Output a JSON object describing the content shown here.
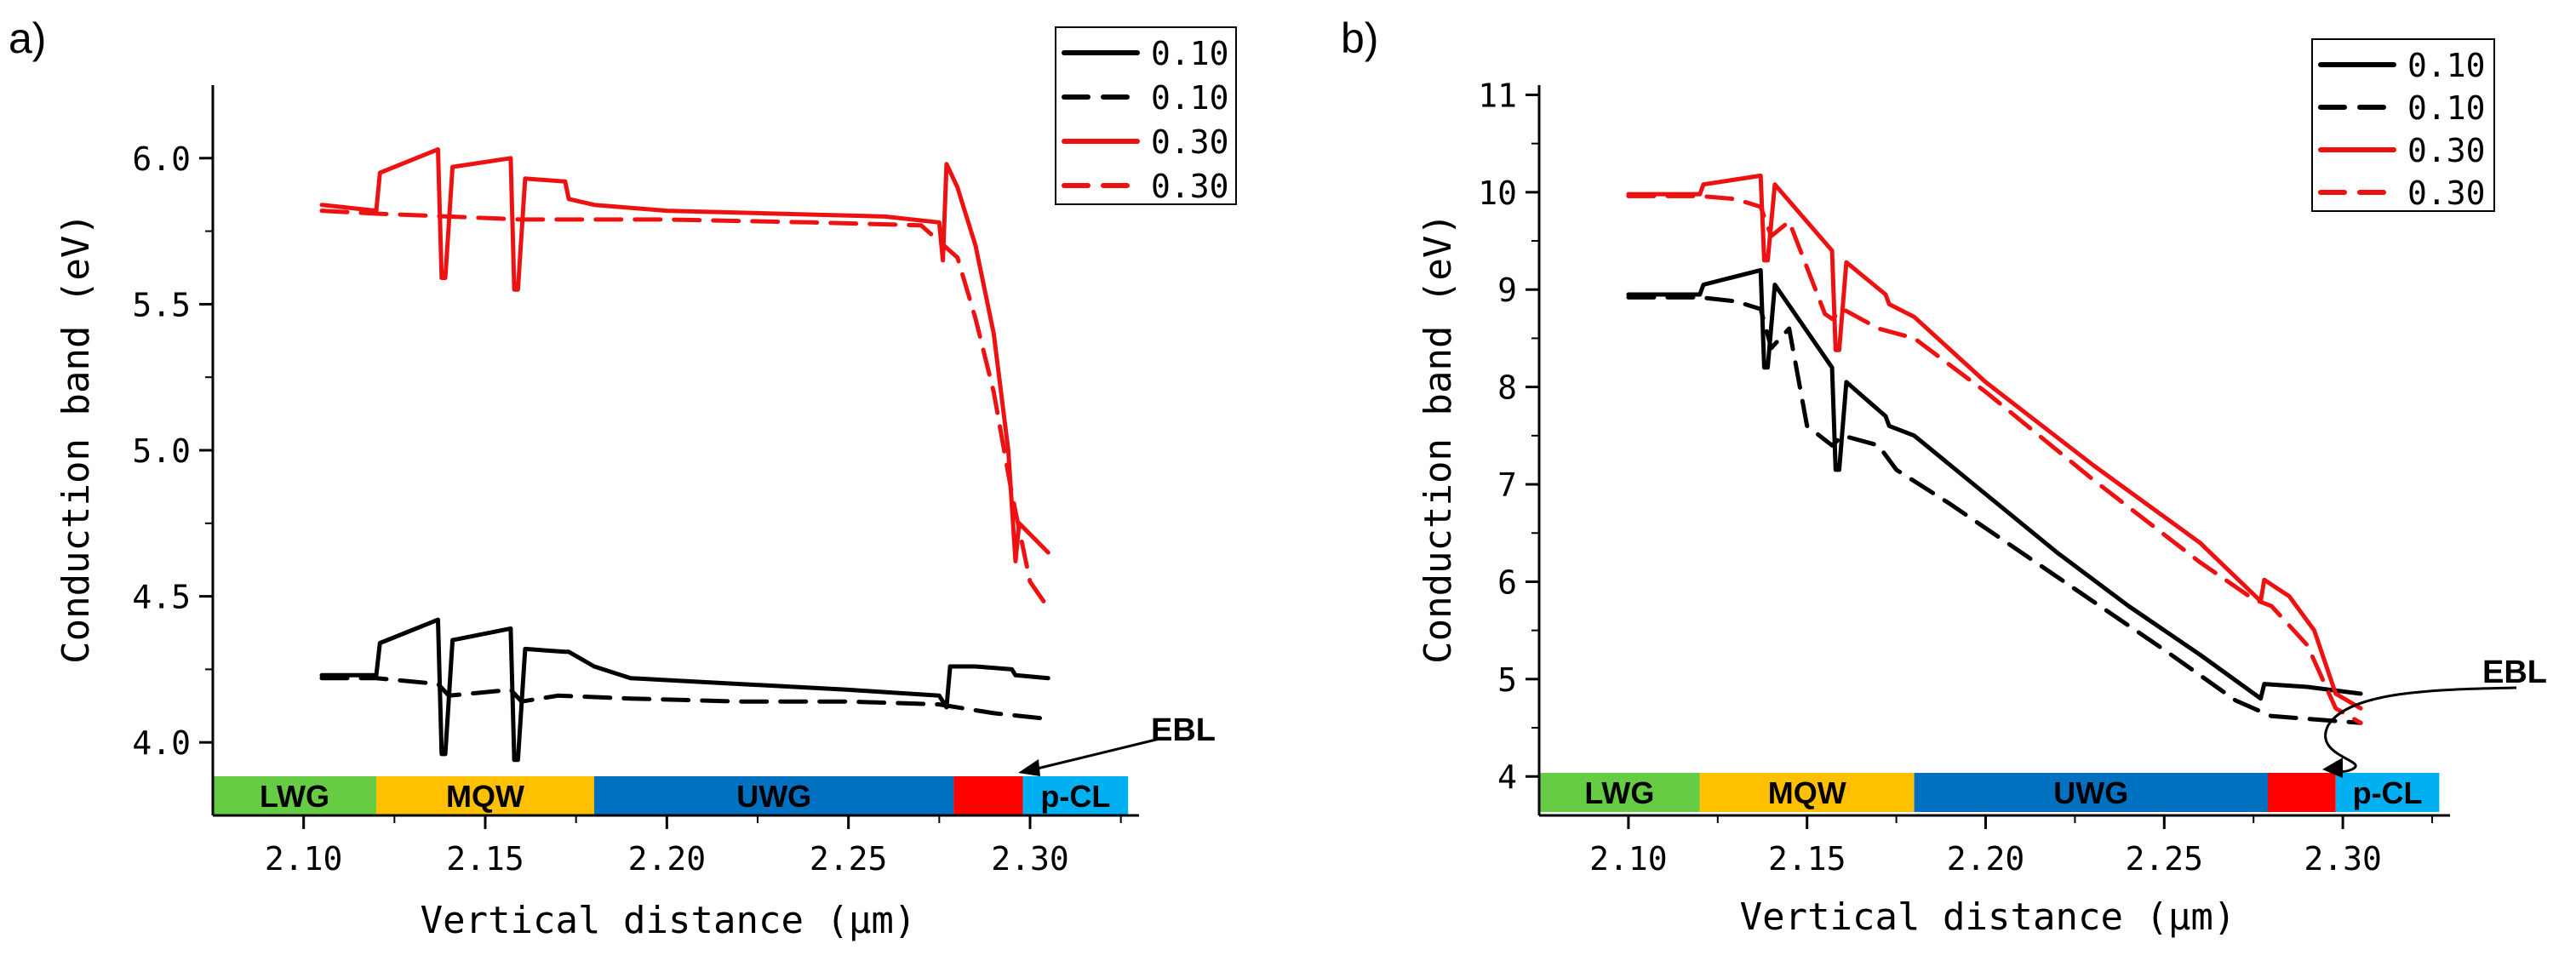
{
  "chart_data": [
    {
      "panel_label": "a)",
      "type": "line",
      "xlabel": "Vertical distance (μm)",
      "ylabel": "Conduction band (eV)",
      "xlim": [
        2.075,
        2.33
      ],
      "ylim": [
        3.75,
        6.25
      ],
      "x_ticks": [
        {
          "value": 2.1,
          "label": "2.10"
        },
        {
          "value": 2.15,
          "label": "2.15"
        },
        {
          "value": 2.2,
          "label": "2.20"
        },
        {
          "value": 2.25,
          "label": "2.25"
        },
        {
          "value": 2.3,
          "label": "2.30"
        }
      ],
      "y_ticks": [
        {
          "value": 4.0,
          "label": "4.0"
        },
        {
          "value": 4.5,
          "label": "4.5"
        },
        {
          "value": 5.0,
          "label": "5.0"
        },
        {
          "value": 5.5,
          "label": "5.5"
        },
        {
          "value": 6.0,
          "label": "6.0"
        }
      ],
      "legend": [
        {
          "label": "0.10",
          "color": "#000000",
          "style": "solid"
        },
        {
          "label": "0.10",
          "color": "#000000",
          "style": "dash"
        },
        {
          "label": "0.30",
          "color": "#ee1111",
          "style": "solid"
        },
        {
          "label": "0.30",
          "color": "#ee1111",
          "style": "dash"
        }
      ],
      "regions": [
        {
          "label": "LWG",
          "x0": 2.075,
          "x1": 2.12,
          "color": "#66cc44"
        },
        {
          "label": "MQW",
          "x0": 2.12,
          "x1": 2.18,
          "color": "#ffc000"
        },
        {
          "label": "UWG",
          "x0": 2.18,
          "x1": 2.279,
          "color": "#0070c0"
        },
        {
          "label": "",
          "x0": 2.279,
          "x1": 2.298,
          "color": "#ff0000"
        },
        {
          "label": "p-CL",
          "x0": 2.298,
          "x1": 2.327,
          "color": "#00b0f0"
        }
      ],
      "annotation": {
        "text": "EBL"
      },
      "series": [
        {
          "name": "0.10",
          "color": "#000000",
          "style": "solid",
          "x": [
            2.105,
            2.12,
            2.121,
            2.137,
            2.138,
            2.139,
            2.141,
            2.157,
            2.158,
            2.159,
            2.161,
            2.172,
            2.173,
            2.18,
            2.19,
            2.22,
            2.25,
            2.275,
            2.277,
            2.278,
            2.285,
            2.295,
            2.296,
            2.305
          ],
          "y": [
            4.23,
            4.23,
            4.34,
            4.42,
            3.96,
            3.96,
            4.35,
            4.39,
            3.94,
            3.94,
            4.32,
            4.31,
            4.31,
            4.26,
            4.22,
            4.2,
            4.18,
            4.16,
            4.12,
            4.26,
            4.26,
            4.25,
            4.23,
            4.22
          ]
        },
        {
          "name": "0.10",
          "color": "#000000",
          "style": "dash",
          "x": [
            2.105,
            2.12,
            2.137,
            2.14,
            2.157,
            2.16,
            2.17,
            2.19,
            2.22,
            2.25,
            2.275,
            2.29,
            2.305
          ],
          "y": [
            4.22,
            4.22,
            4.2,
            4.16,
            4.18,
            4.14,
            4.16,
            4.15,
            4.14,
            4.14,
            4.13,
            4.1,
            4.08
          ]
        },
        {
          "name": "0.30",
          "color": "#ee1111",
          "style": "solid",
          "x": [
            2.105,
            2.12,
            2.121,
            2.137,
            2.138,
            2.139,
            2.141,
            2.157,
            2.158,
            2.159,
            2.161,
            2.172,
            2.173,
            2.18,
            2.2,
            2.23,
            2.26,
            2.275,
            2.276,
            2.277,
            2.28,
            2.285,
            2.29,
            2.294,
            2.296,
            2.297,
            2.305
          ],
          "y": [
            5.84,
            5.82,
            5.95,
            6.03,
            5.59,
            5.59,
            5.97,
            6.0,
            5.55,
            5.55,
            5.93,
            5.92,
            5.86,
            5.84,
            5.82,
            5.81,
            5.8,
            5.78,
            5.65,
            5.98,
            5.9,
            5.7,
            5.4,
            5.0,
            4.62,
            4.75,
            4.65
          ]
        },
        {
          "name": "0.30",
          "color": "#ee1111",
          "style": "dash",
          "x": [
            2.105,
            2.12,
            2.14,
            2.16,
            2.18,
            2.2,
            2.24,
            2.27,
            2.28,
            2.285,
            2.29,
            2.295,
            2.3,
            2.305
          ],
          "y": [
            5.82,
            5.81,
            5.8,
            5.79,
            5.79,
            5.79,
            5.78,
            5.77,
            5.66,
            5.45,
            5.2,
            4.85,
            4.55,
            4.46
          ]
        }
      ]
    },
    {
      "panel_label": "b)",
      "type": "line",
      "xlabel": "Vertical distance (μm)",
      "ylabel": "Conduction band (eV)",
      "xlim": [
        2.075,
        2.33
      ],
      "ylim": [
        3.6,
        11.1
      ],
      "x_ticks": [
        {
          "value": 2.1,
          "label": "2.10"
        },
        {
          "value": 2.15,
          "label": "2.15"
        },
        {
          "value": 2.2,
          "label": "2.20"
        },
        {
          "value": 2.25,
          "label": "2.25"
        },
        {
          "value": 2.3,
          "label": "2.30"
        }
      ],
      "y_ticks": [
        {
          "value": 4,
          "label": "4"
        },
        {
          "value": 5,
          "label": "5"
        },
        {
          "value": 6,
          "label": "6"
        },
        {
          "value": 7,
          "label": "7"
        },
        {
          "value": 8,
          "label": "8"
        },
        {
          "value": 9,
          "label": "9"
        },
        {
          "value": 10,
          "label": "10"
        },
        {
          "value": 11,
          "label": "11"
        }
      ],
      "legend": [
        {
          "label": "0.10",
          "color": "#000000",
          "style": "solid"
        },
        {
          "label": "0.10",
          "color": "#000000",
          "style": "dash"
        },
        {
          "label": "0.30",
          "color": "#ee1111",
          "style": "solid"
        },
        {
          "label": "0.30",
          "color": "#ee1111",
          "style": "dash"
        }
      ],
      "regions": [
        {
          "label": "LWG",
          "x0": 2.075,
          "x1": 2.12,
          "color": "#66cc44"
        },
        {
          "label": "MQW",
          "x0": 2.12,
          "x1": 2.18,
          "color": "#ffc000"
        },
        {
          "label": "UWG",
          "x0": 2.18,
          "x1": 2.279,
          "color": "#0070c0"
        },
        {
          "label": "",
          "x0": 2.279,
          "x1": 2.298,
          "color": "#ff0000"
        },
        {
          "label": "p-CL",
          "x0": 2.298,
          "x1": 2.327,
          "color": "#00b0f0"
        }
      ],
      "annotation": {
        "text": "EBL"
      },
      "series": [
        {
          "name": "0.10",
          "color": "#000000",
          "style": "solid",
          "x": [
            2.1,
            2.12,
            2.121,
            2.137,
            2.138,
            2.139,
            2.141,
            2.157,
            2.158,
            2.159,
            2.161,
            2.172,
            2.173,
            2.18,
            2.2,
            2.22,
            2.24,
            2.26,
            2.277,
            2.278,
            2.29,
            2.305
          ],
          "y": [
            8.95,
            8.95,
            9.05,
            9.2,
            8.2,
            8.2,
            9.05,
            8.2,
            7.15,
            7.15,
            8.05,
            7.7,
            7.6,
            7.5,
            6.9,
            6.3,
            5.75,
            5.25,
            4.8,
            4.95,
            4.92,
            4.85
          ]
        },
        {
          "name": "0.10",
          "color": "#000000",
          "style": "dash",
          "x": [
            2.1,
            2.12,
            2.13,
            2.137,
            2.14,
            2.145,
            2.15,
            2.157,
            2.16,
            2.17,
            2.175,
            2.19,
            2.22,
            2.25,
            2.27,
            2.28,
            2.305
          ],
          "y": [
            8.92,
            8.92,
            8.88,
            8.8,
            8.4,
            8.6,
            7.6,
            7.4,
            7.5,
            7.4,
            7.15,
            6.8,
            6.05,
            5.3,
            4.78,
            4.62,
            4.55
          ]
        },
        {
          "name": "0.30",
          "color": "#ee1111",
          "style": "solid",
          "x": [
            2.1,
            2.12,
            2.121,
            2.137,
            2.138,
            2.139,
            2.141,
            2.157,
            2.158,
            2.159,
            2.161,
            2.172,
            2.173,
            2.18,
            2.2,
            2.23,
            2.26,
            2.277,
            2.278,
            2.285,
            2.292,
            2.298,
            2.305
          ],
          "y": [
            9.98,
            9.98,
            10.08,
            10.17,
            9.3,
            9.3,
            10.08,
            9.4,
            8.38,
            8.38,
            9.28,
            8.95,
            8.85,
            8.72,
            8.05,
            7.2,
            6.4,
            5.8,
            6.02,
            5.85,
            5.5,
            4.85,
            4.7
          ]
        },
        {
          "name": "0.30",
          "color": "#ee1111",
          "style": "dash",
          "x": [
            2.1,
            2.12,
            2.13,
            2.137,
            2.14,
            2.145,
            2.155,
            2.157,
            2.16,
            2.17,
            2.18,
            2.2,
            2.23,
            2.26,
            2.275,
            2.28,
            2.29,
            2.298,
            2.305
          ],
          "y": [
            9.96,
            9.96,
            9.93,
            9.85,
            9.55,
            9.7,
            8.75,
            8.7,
            8.8,
            8.6,
            8.5,
            7.95,
            7.05,
            6.2,
            5.82,
            5.75,
            5.35,
            4.7,
            4.55
          ]
        }
      ]
    }
  ]
}
